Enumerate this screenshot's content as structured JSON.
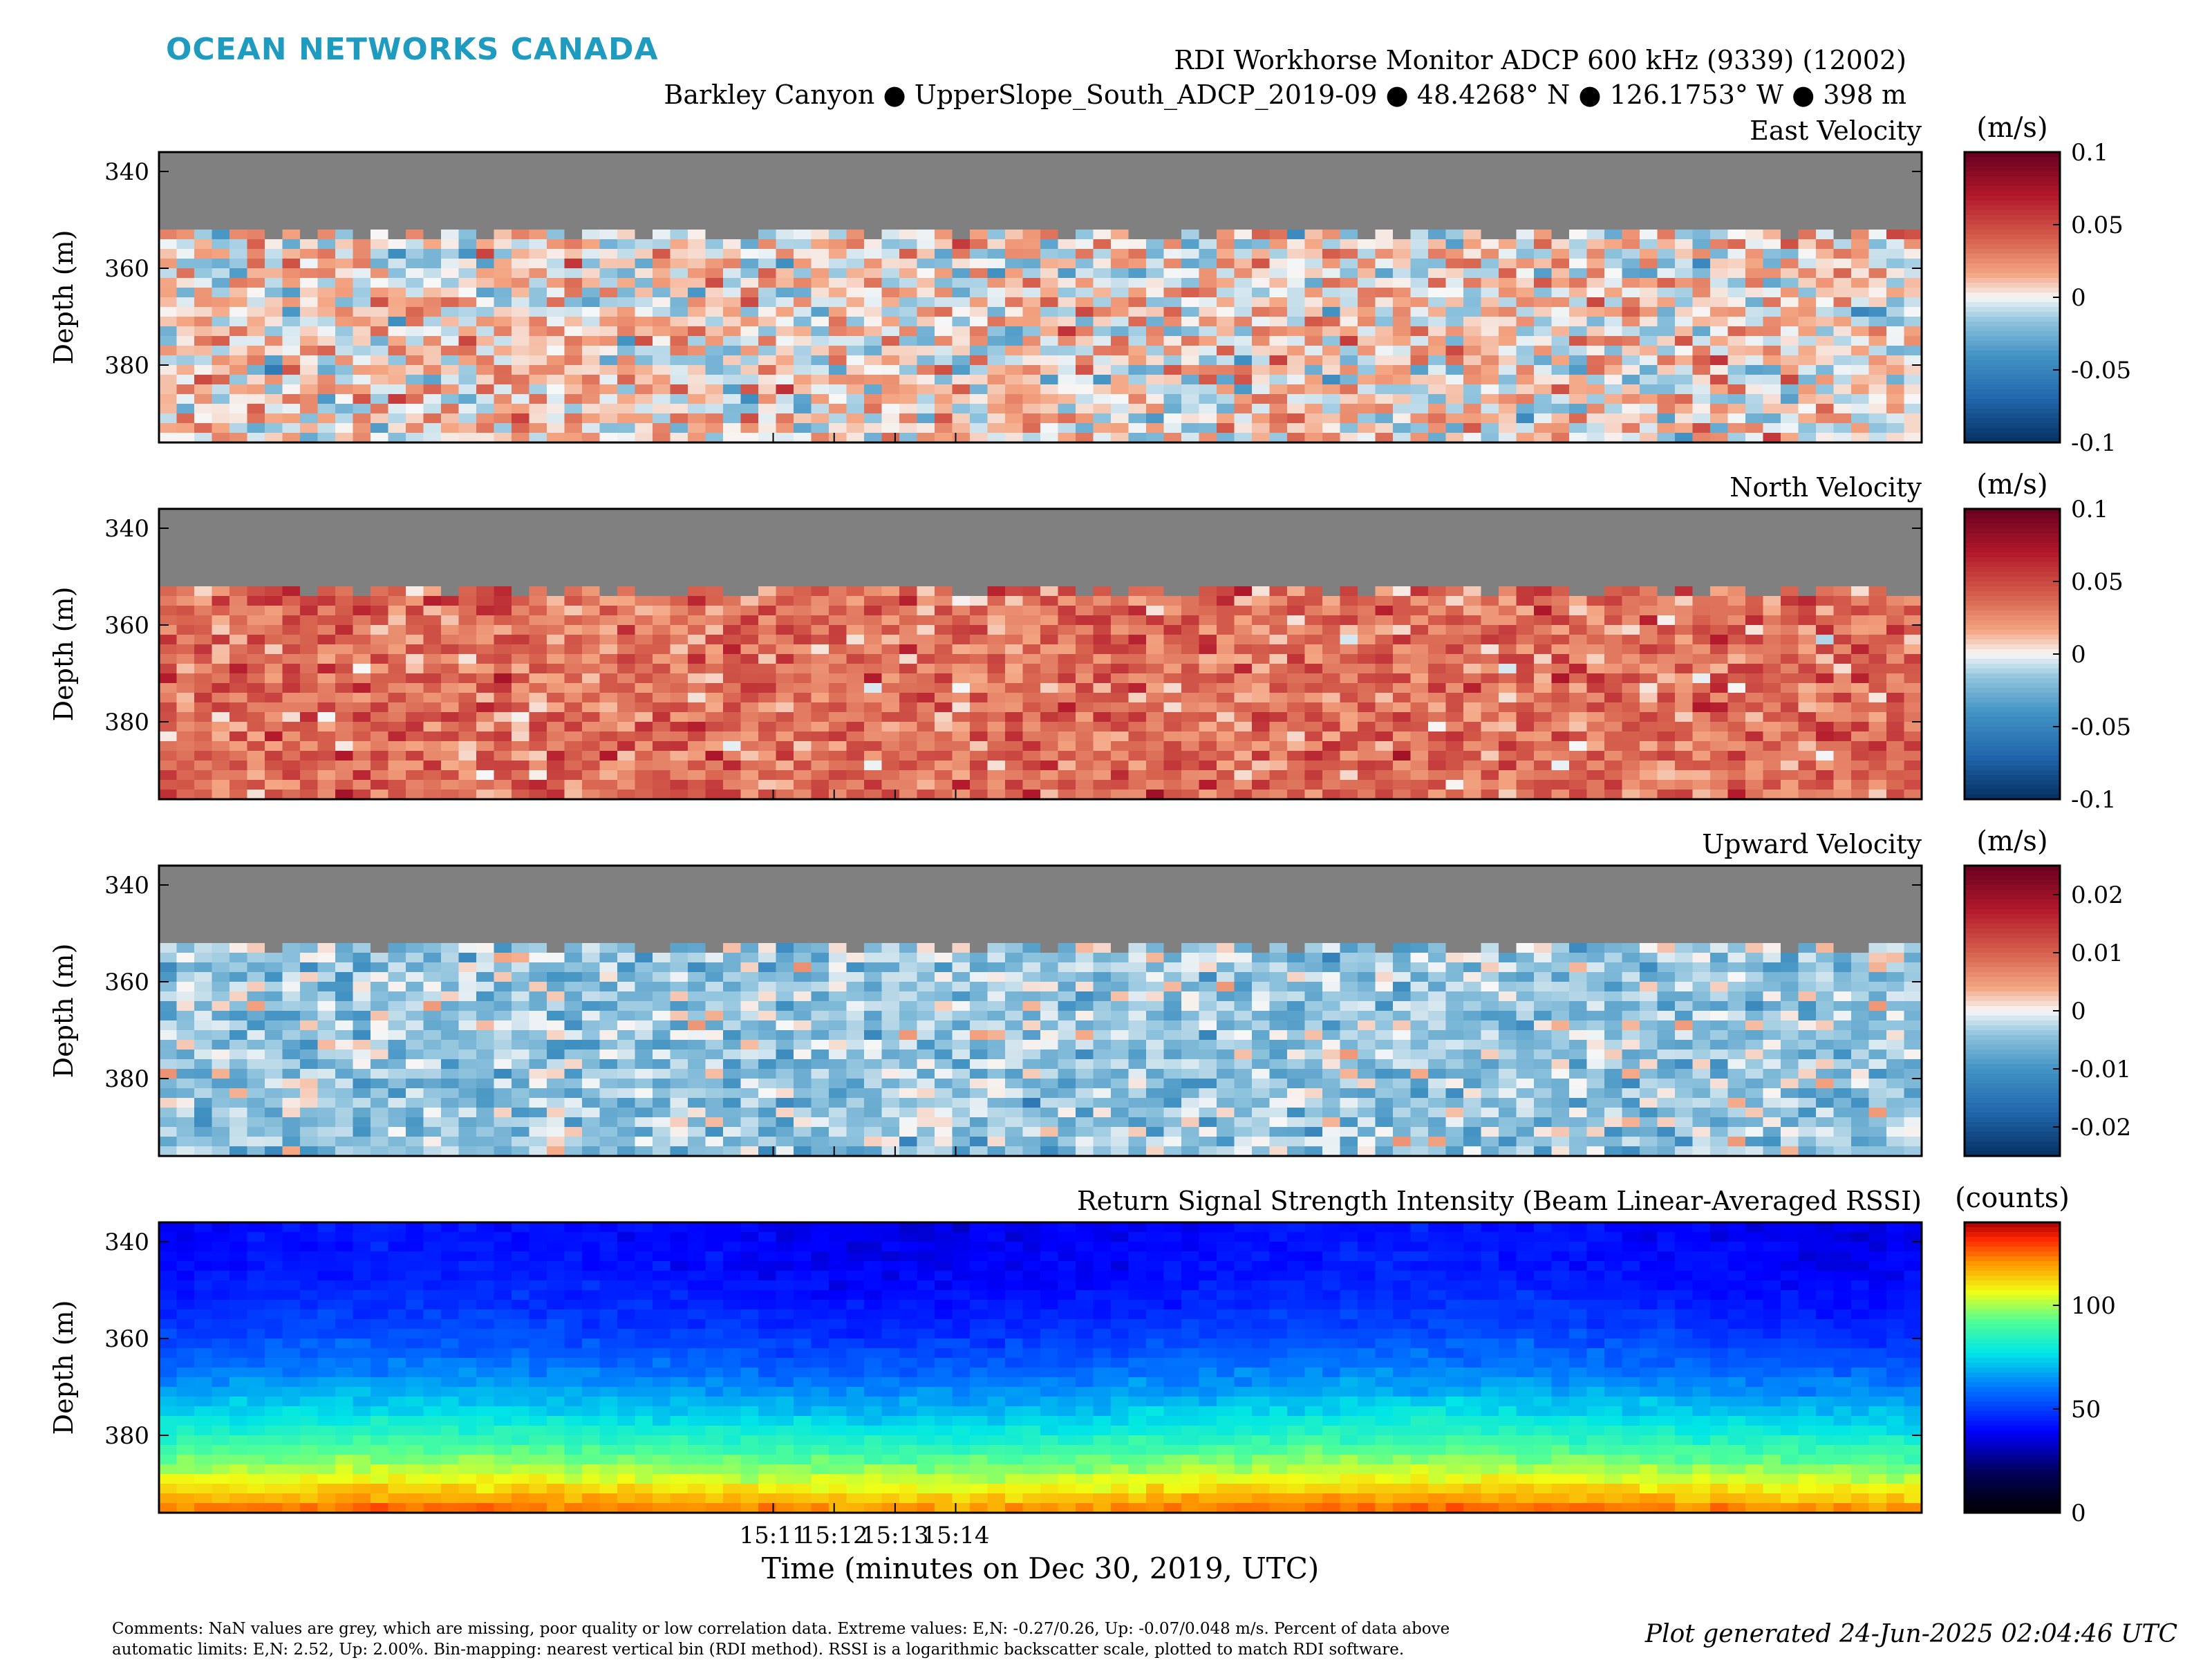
{
  "brand": {
    "name": "OCEAN NETWORKS CANADA",
    "color": "#1f9bbf"
  },
  "header": {
    "title": "RDI Workhorse Monitor ADCP 600 kHz (9339) (12002)",
    "subtitle": "Barkley Canyon ● UpperSlope_South_ADCP_2019-09 ● 48.4268° N ● 126.1753° W ● 398 m"
  },
  "xaxis": {
    "label": "Time (minutes on Dec 30, 2019, UTC)",
    "range_minutes": [
      15.015,
      15.498
    ],
    "ticks": [
      {
        "value": 15.1833,
        "label": "15:11"
      },
      {
        "value": 15.2,
        "label": "15:12"
      },
      {
        "value": 15.2167,
        "label": "15:13"
      },
      {
        "value": 15.2333,
        "label": "15:14"
      }
    ]
  },
  "colors": {
    "missing": "#808080",
    "frame": "#000000"
  },
  "footer": {
    "comments_line1": "Comments: NaN values are grey, which are missing, poor quality or low correlation data. Extreme values: E,N: -0.27/0.26, Up: -0.07/0.048 m/s. Percent of data above",
    "comments_line2": "automatic limits: E,N: 2.52, Up: 2.00%. Bin-mapping: nearest vertical bin (RDI method). RSSI is a logarithmic backscatter scale, plotted to match RDI software.",
    "generated": "Plot generated 24-Jun-2025 02:04:46 UTC"
  },
  "chart_data": [
    {
      "type": "heatmap",
      "title": "East Velocity",
      "ylabel": "Depth (m)",
      "ylim": [
        336,
        396
      ],
      "yticks": [
        340,
        360,
        380
      ],
      "colorbar": {
        "label": "(m/s)",
        "colormap": "RdBu_r",
        "range": [
          -0.1,
          0.1
        ],
        "ticks": [
          0.1,
          0.05,
          0,
          -0.05,
          -0.1
        ],
        "tick_labels": [
          "0.1",
          "0.05",
          "0",
          "-0.05",
          "-0.1"
        ]
      },
      "missing_above_depth": 352,
      "field": {
        "mean": 0.005,
        "spread": 0.07
      }
    },
    {
      "type": "heatmap",
      "title": "North Velocity",
      "ylabel": "Depth (m)",
      "ylim": [
        336,
        396
      ],
      "yticks": [
        340,
        360,
        380
      ],
      "colorbar": {
        "label": "(m/s)",
        "colormap": "RdBu_r",
        "range": [
          -0.1,
          0.1
        ],
        "ticks": [
          0.1,
          0.05,
          0,
          -0.05,
          -0.1
        ],
        "tick_labels": [
          "0.1",
          "0.05",
          "0",
          "-0.05",
          "-0.1"
        ]
      },
      "missing_above_depth": 352,
      "field": {
        "mean": 0.035,
        "spread": 0.055
      }
    },
    {
      "type": "heatmap",
      "title": "Upward Velocity",
      "ylabel": "Depth (m)",
      "ylim": [
        336,
        396
      ],
      "yticks": [
        340,
        360,
        380
      ],
      "colorbar": {
        "label": "(m/s)",
        "colormap": "RdBu_r",
        "range": [
          -0.025,
          0.025
        ],
        "ticks": [
          0.02,
          0.01,
          0,
          -0.01,
          -0.02
        ],
        "tick_labels": [
          "0.02",
          "0.01",
          "0",
          "-0.01",
          "-0.02"
        ]
      },
      "missing_above_depth": 352,
      "field": {
        "mean": -0.004,
        "spread": 0.012
      }
    },
    {
      "type": "heatmap",
      "title": "Return Signal Strength Intensity (Beam Linear-Averaged RSSI)",
      "ylabel": "Depth (m)",
      "ylim": [
        336,
        396
      ],
      "yticks": [
        340,
        360,
        380
      ],
      "colorbar": {
        "label": "(counts)",
        "colormap": "jet-dark",
        "range": [
          0,
          140
        ],
        "ticks": [
          100,
          50,
          0
        ],
        "tick_labels": [
          "100",
          "50",
          "0"
        ]
      },
      "missing_above_depth": 0,
      "field": {
        "surface_counts": 40,
        "bottom_counts": 125
      }
    }
  ]
}
